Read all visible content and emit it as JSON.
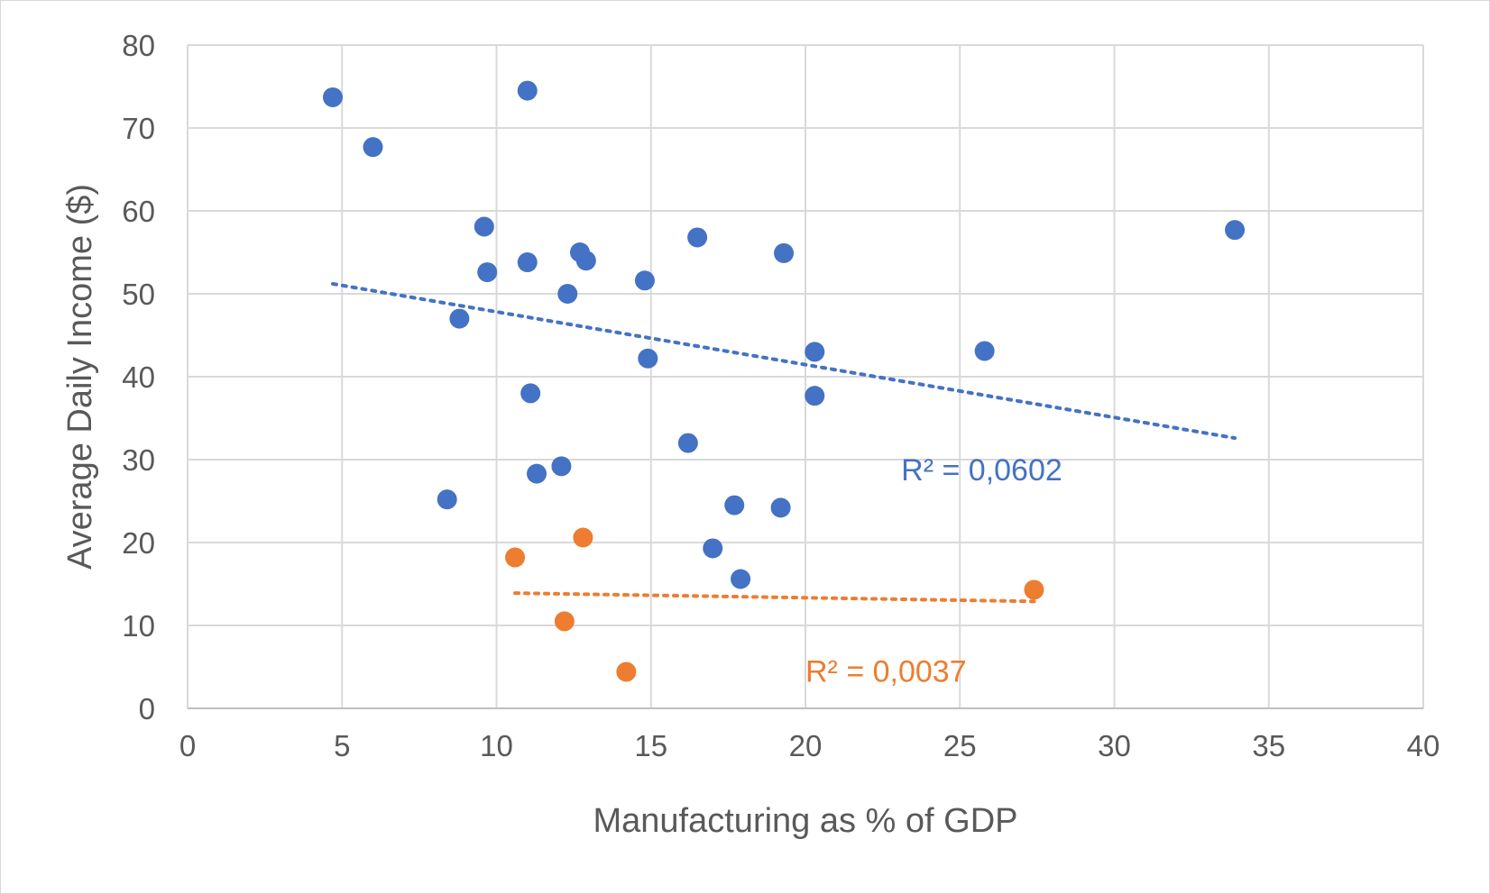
{
  "chart_data": {
    "type": "scatter",
    "title": "",
    "xlabel": "Manufacturing as % of GDP",
    "ylabel": "Average Daily Income ($)",
    "xlim": [
      0,
      40
    ],
    "ylim": [
      0,
      80
    ],
    "x_ticks": [
      "0",
      "5",
      "10",
      "15",
      "20",
      "25",
      "30",
      "35",
      "40"
    ],
    "y_ticks": [
      "0",
      "10",
      "20",
      "30",
      "40",
      "50",
      "60",
      "70",
      "80"
    ],
    "grid": true,
    "legend": "none",
    "series": [
      {
        "color": "#4472C4",
        "points": [
          {
            "x": 4.7,
            "y": 73.7
          },
          {
            "x": 6.0,
            "y": 67.7
          },
          {
            "x": 11.0,
            "y": 74.5
          },
          {
            "x": 9.6,
            "y": 58.1
          },
          {
            "x": 9.7,
            "y": 52.6
          },
          {
            "x": 11.0,
            "y": 53.8
          },
          {
            "x": 12.7,
            "y": 55.0
          },
          {
            "x": 12.9,
            "y": 54.0
          },
          {
            "x": 12.3,
            "y": 50.0
          },
          {
            "x": 14.8,
            "y": 51.6
          },
          {
            "x": 16.5,
            "y": 56.8
          },
          {
            "x": 19.3,
            "y": 54.9
          },
          {
            "x": 33.9,
            "y": 57.7
          },
          {
            "x": 8.8,
            "y": 47.0
          },
          {
            "x": 14.9,
            "y": 42.2
          },
          {
            "x": 20.3,
            "y": 43.0
          },
          {
            "x": 25.8,
            "y": 43.1
          },
          {
            "x": 11.1,
            "y": 38.0
          },
          {
            "x": 20.3,
            "y": 37.7
          },
          {
            "x": 16.2,
            "y": 32.0
          },
          {
            "x": 12.1,
            "y": 29.2
          },
          {
            "x": 11.3,
            "y": 28.3
          },
          {
            "x": 8.4,
            "y": 25.2
          },
          {
            "x": 17.7,
            "y": 24.5
          },
          {
            "x": 19.2,
            "y": 24.2
          },
          {
            "x": 17.0,
            "y": 19.3
          },
          {
            "x": 17.9,
            "y": 15.6
          }
        ],
        "trendline": {
          "type": "linear",
          "x_range": [
            4.7,
            33.9
          ],
          "y_range": [
            51.2,
            32.6
          ],
          "style": "dotted"
        },
        "r2_label": "R² = 0,0602"
      },
      {
        "color": "#ED7D31",
        "points": [
          {
            "x": 10.6,
            "y": 18.2
          },
          {
            "x": 12.8,
            "y": 20.6
          },
          {
            "x": 12.2,
            "y": 10.5
          },
          {
            "x": 14.2,
            "y": 4.4
          },
          {
            "x": 27.4,
            "y": 14.3
          }
        ],
        "trendline": {
          "type": "linear",
          "x_range": [
            10.6,
            27.4
          ],
          "y_range": [
            13.9,
            12.9
          ],
          "style": "dotted"
        },
        "r2_label": "R² = 0,0037"
      }
    ]
  }
}
